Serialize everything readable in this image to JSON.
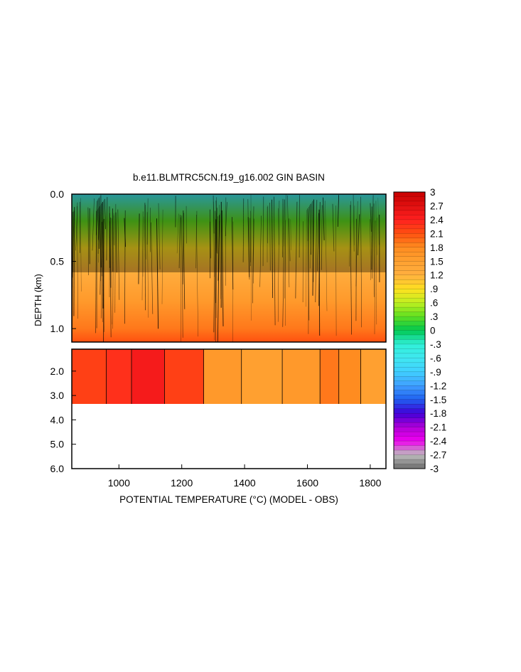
{
  "chart_data": {
    "type": "heatmap",
    "title": "b.e11.BLMTRC5CN.f19_g16.002 GIN BASIN",
    "xlabel": "POTENTIAL TEMPERATURE (°C) (MODEL - OBS)",
    "ylabel": "DEPTH (km)",
    "xlim": [
      850,
      1850
    ],
    "x_ticks": [
      1000,
      1200,
      1400,
      1600,
      1800
    ],
    "x_tick_labels": [
      "1000",
      "1200",
      "1400",
      "1600",
      "1800"
    ],
    "upper_panel": {
      "ylim": [
        0.0,
        1.1
      ],
      "y_ticks": [
        0.0,
        0.5,
        1.0
      ],
      "y_tick_labels": [
        "0.0",
        "0.5",
        "1.0"
      ]
    },
    "lower_panel": {
      "ylim": [
        1.1,
        6.0
      ],
      "y_ticks": [
        2.0,
        3.0,
        4.0,
        5.0,
        6.0
      ],
      "y_tick_labels": [
        "2.0",
        "3.0",
        "4.0",
        "5.0",
        "6.0"
      ],
      "data_bottom_depth": 3.4
    },
    "deep_segments": [
      {
        "x0": 850,
        "x1": 960,
        "value": 2.2
      },
      {
        "x0": 960,
        "x1": 1040,
        "value": 2.3
      },
      {
        "x0": 1040,
        "x1": 1145,
        "value": 2.5
      },
      {
        "x0": 1145,
        "x1": 1270,
        "value": 2.2
      },
      {
        "x0": 1270,
        "x1": 1390,
        "value": 1.6
      },
      {
        "x0": 1390,
        "x1": 1520,
        "value": 1.5
      },
      {
        "x0": 1520,
        "x1": 1640,
        "value": 1.6
      },
      {
        "x0": 1640,
        "x1": 1700,
        "value": 1.9
      },
      {
        "x0": 1700,
        "x1": 1770,
        "value": 1.8
      },
      {
        "x0": 1770,
        "x1": 1850,
        "value": 1.5
      }
    ],
    "upper_profile": [
      {
        "depth": 0.0,
        "value": -0.6
      },
      {
        "depth": 0.2,
        "value": 0.3
      },
      {
        "depth": 0.4,
        "value": 0.9
      },
      {
        "depth": 0.6,
        "value": 1.3
      },
      {
        "depth": 0.8,
        "value": 1.6
      },
      {
        "depth": 1.0,
        "value": 1.9
      },
      {
        "depth": 1.1,
        "value": 2.1
      }
    ],
    "colorbar": {
      "min": -3,
      "max": 3,
      "step": 0.1,
      "tick_labels": [
        "3",
        "2.7",
        "2.4",
        "2.1",
        "1.8",
        "1.5",
        "1.2",
        ".9",
        ".6",
        ".3",
        "0",
        "-.3",
        "-.6",
        "-.9",
        "-1.2",
        "-1.5",
        "-1.8",
        "-2.1",
        "-2.4",
        "-2.7",
        "-3"
      ]
    },
    "colors": {
      "c_m30": "#6e6e6e",
      "c_m27": "#bdbdbd",
      "c_m24": "#f000f0",
      "c_m21": "#b000d8",
      "c_m18": "#4000d8",
      "c_m15": "#2060f0",
      "c_m12": "#40a0ff",
      "c_m09": "#40d0ff",
      "c_m06": "#40e8f0",
      "c_m03": "#30f0d8",
      "c_p00": "#00c850",
      "c_p03": "#60e020",
      "c_p06": "#c0f020",
      "c_p09": "#ffe020",
      "c_p12": "#ffb040",
      "c_p15": "#ffa030",
      "c_p18": "#ff8c20",
      "c_p21": "#ff5010",
      "c_p24": "#ff2020",
      "c_p27": "#e01010",
      "c_p30": "#c80000"
    }
  }
}
